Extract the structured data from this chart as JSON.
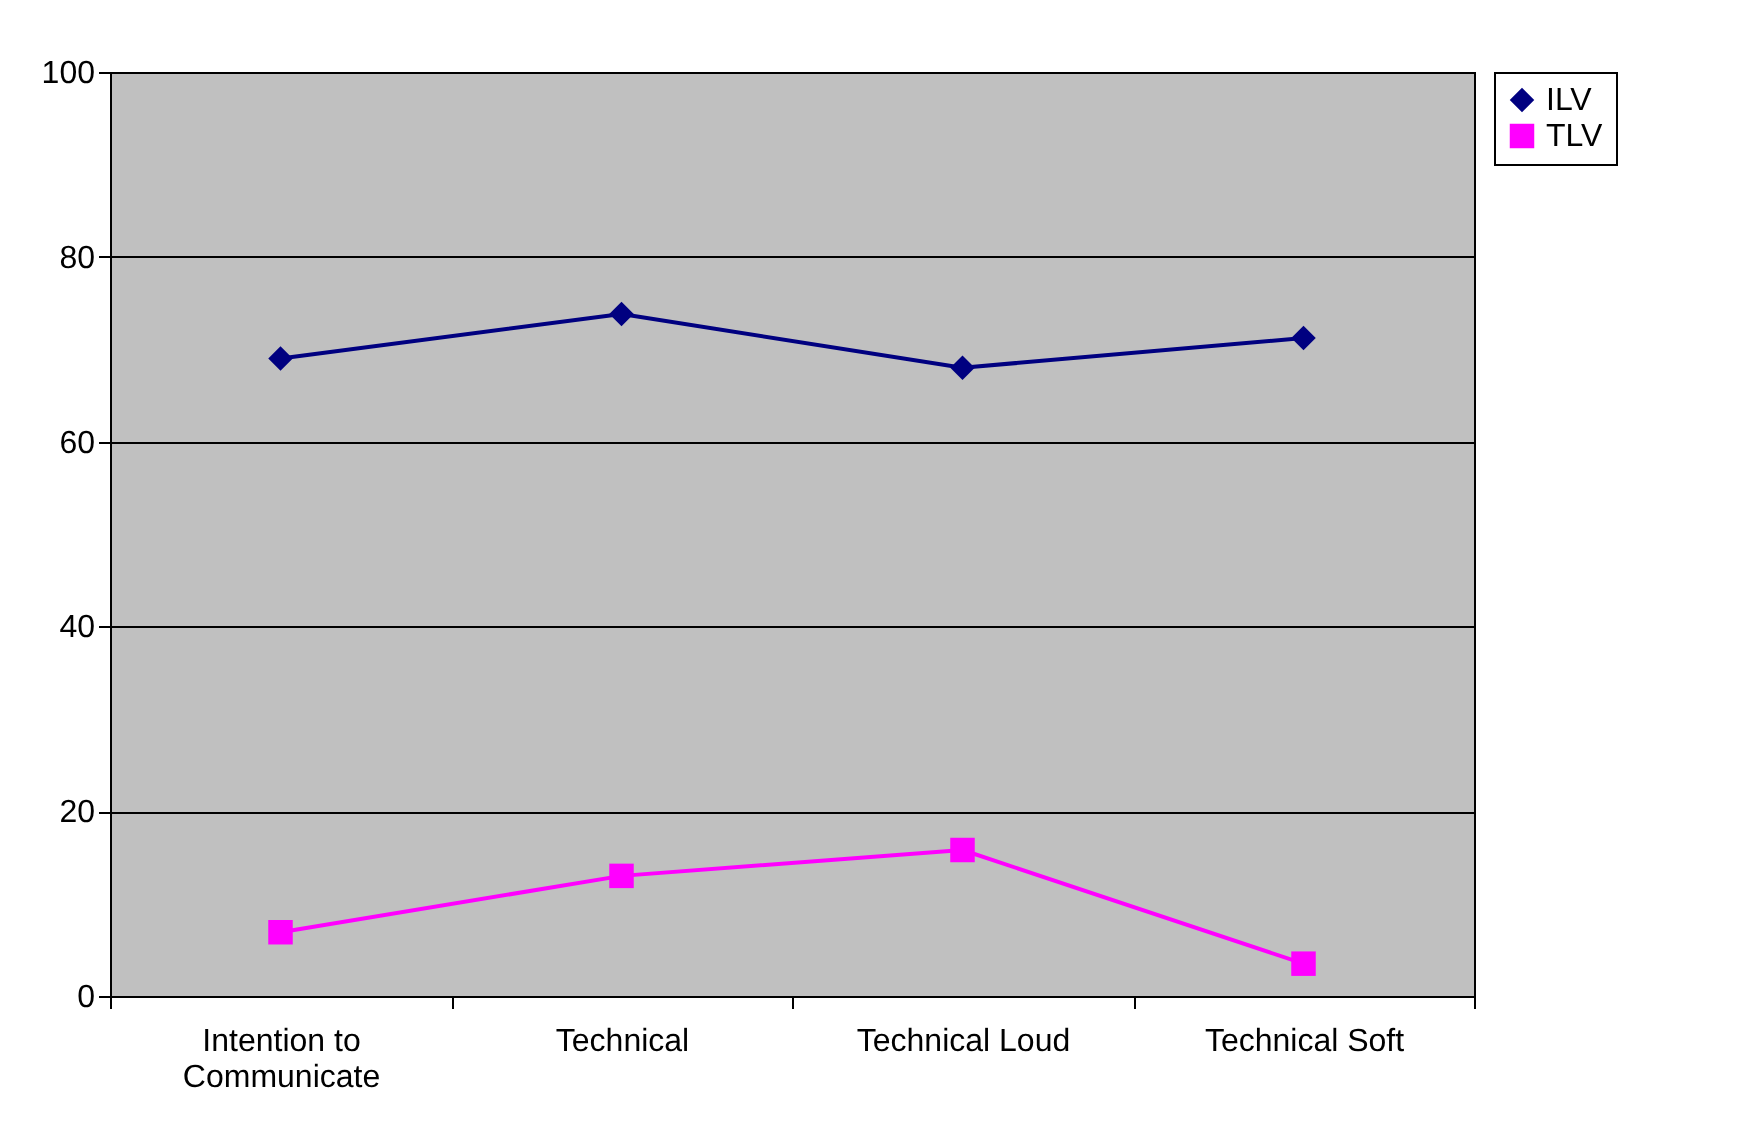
{
  "chart_data": {
    "type": "line",
    "categories": [
      "Intention to Communicate",
      "Technical",
      "Technical Loud",
      "Technical Soft"
    ],
    "series": [
      {
        "name": "ILV",
        "color": "#000080",
        "marker": "diamond",
        "values": [
          69.0,
          73.8,
          68.0,
          71.2
        ]
      },
      {
        "name": "TLV",
        "color": "#ff00ff",
        "marker": "square",
        "values": [
          6.9,
          13.0,
          15.8,
          3.5
        ]
      }
    ],
    "ylim": [
      0,
      100
    ],
    "yticks": [
      0,
      20,
      40,
      60,
      80,
      100
    ],
    "grid": "y",
    "legend": "right",
    "line_style": "solid"
  }
}
